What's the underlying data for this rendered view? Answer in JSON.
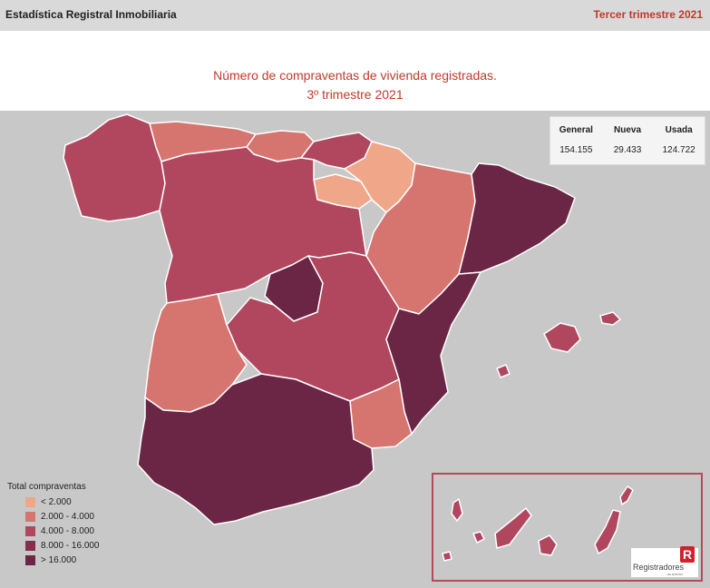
{
  "header": {
    "left_title": "Estadística Registral Inmobiliaria",
    "right_title": "Tercer trimestre 2021"
  },
  "map": {
    "title_line1": "Número de compraventas de vivienda registradas.",
    "title_line2": "3º trimestre 2021",
    "background_color": "#c8c8c8",
    "region_border_color": "#ffffff",
    "inset_border_color": "#b54a5a"
  },
  "stats": {
    "headers": [
      "General",
      "Nueva",
      "Usada"
    ],
    "values": [
      "154.155",
      "29.433",
      "124.722"
    ]
  },
  "legend": {
    "title": "Total compraventas",
    "items": [
      {
        "label": "< 2.000",
        "color": "#f0a789"
      },
      {
        "label": "2.000 - 4.000",
        "color": "#d6756f"
      },
      {
        "label": "4.000 - 8.000",
        "color": "#b0475f"
      },
      {
        "label": "8.000 - 16.000",
        "color": "#8a2c4c"
      },
      {
        "label": "> 16.000",
        "color": "#6b2545"
      }
    ]
  },
  "regions": [
    {
      "name": "Galicia",
      "class": "4.000 - 8.000"
    },
    {
      "name": "Asturias",
      "class": "2.000 - 4.000"
    },
    {
      "name": "Cantabria",
      "class": "2.000 - 4.000"
    },
    {
      "name": "País Vasco",
      "class": "4.000 - 8.000"
    },
    {
      "name": "Navarra",
      "class": "< 2.000"
    },
    {
      "name": "La Rioja",
      "class": "< 2.000"
    },
    {
      "name": "Aragón",
      "class": "2.000 - 4.000"
    },
    {
      "name": "Cataluña",
      "class": "> 16.000"
    },
    {
      "name": "Castilla y León",
      "class": "4.000 - 8.000"
    },
    {
      "name": "Madrid",
      "class": "> 16.000"
    },
    {
      "name": "Castilla-La Mancha",
      "class": "4.000 - 8.000"
    },
    {
      "name": "Comunidad Valenciana",
      "class": "> 16.000"
    },
    {
      "name": "Extremadura",
      "class": "2.000 - 4.000"
    },
    {
      "name": "Andalucía",
      "class": "> 16.000"
    },
    {
      "name": "Murcia",
      "class": "2.000 - 4.000"
    },
    {
      "name": "Islas Baleares",
      "class": "4.000 - 8.000"
    },
    {
      "name": "Canarias",
      "class": "4.000 - 8.000"
    }
  ],
  "logo": {
    "mark": "R",
    "text": "Registradores",
    "subtext": "DE ESPAÑA"
  }
}
